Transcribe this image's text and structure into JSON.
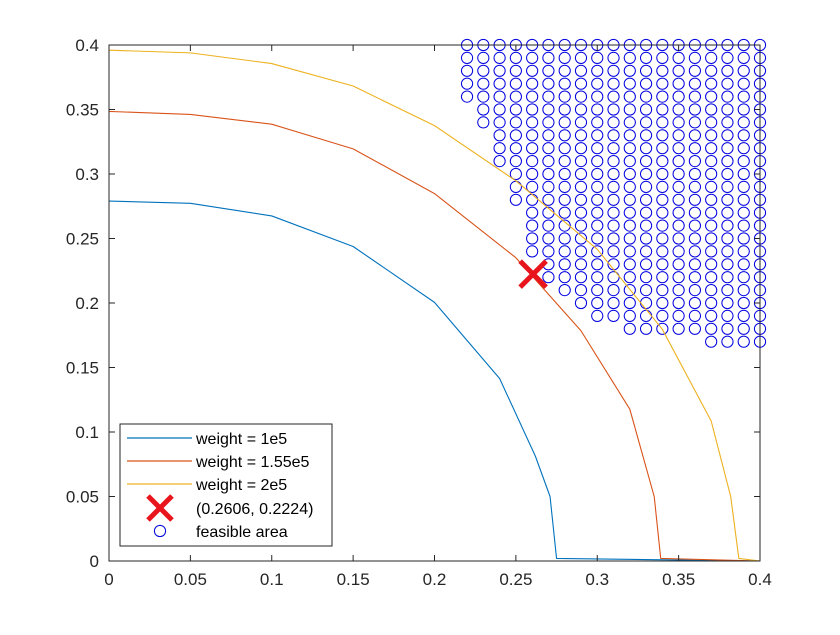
{
  "chart_data": {
    "type": "line",
    "title": "",
    "xlabel": "",
    "ylabel": "",
    "xlim": [
      0,
      0.4
    ],
    "ylim": [
      0,
      0.4
    ],
    "x_ticks": [
      0,
      0.05,
      0.1,
      0.15,
      0.2,
      0.25,
      0.3,
      0.35,
      0.4
    ],
    "x_tick_labels": [
      "0",
      "0.05",
      "0.1",
      "0.15",
      "0.2",
      "0.25",
      "0.3",
      "0.35",
      "0.4"
    ],
    "y_ticks": [
      0,
      0.05,
      0.1,
      0.15,
      0.2,
      0.25,
      0.3,
      0.35,
      0.4
    ],
    "y_tick_labels": [
      "0",
      "0.05",
      "0.1",
      "0.15",
      "0.2",
      "0.25",
      "0.3",
      "0.35",
      "0.4"
    ],
    "grid": false,
    "legend_position": "bottom-left",
    "series": [
      {
        "name": "weight = 1e5",
        "kind": "line",
        "color": "#0072BD",
        "points": [
          [
            0,
            0.279
          ],
          [
            0.05,
            0.2773
          ],
          [
            0.1,
            0.2675
          ],
          [
            0.15,
            0.2438
          ],
          [
            0.2,
            0.2005
          ],
          [
            0.24,
            0.1415
          ],
          [
            0.262,
            0.0812
          ],
          [
            0.271,
            0.05
          ],
          [
            0.275,
            0.002
          ],
          [
            0.4,
            0
          ]
        ]
      },
      {
        "name": "weight = 1.55e5",
        "kind": "line",
        "color": "#D95319",
        "points": [
          [
            0,
            0.3485
          ],
          [
            0.05,
            0.3462
          ],
          [
            0.1,
            0.3386
          ],
          [
            0.15,
            0.3195
          ],
          [
            0.2,
            0.2848
          ],
          [
            0.25,
            0.2351
          ],
          [
            0.29,
            0.1785
          ],
          [
            0.32,
            0.1177
          ],
          [
            0.335,
            0.05
          ],
          [
            0.339,
            0.002
          ],
          [
            0.4,
            0
          ]
        ]
      },
      {
        "name": "weight = 2e5",
        "kind": "line",
        "color": "#EDB120",
        "points": [
          [
            0,
            0.396
          ],
          [
            0.05,
            0.3939
          ],
          [
            0.1,
            0.3856
          ],
          [
            0.15,
            0.3682
          ],
          [
            0.2,
            0.3375
          ],
          [
            0.25,
            0.2947
          ],
          [
            0.3,
            0.2416
          ],
          [
            0.34,
            0.1796
          ],
          [
            0.37,
            0.1085
          ],
          [
            0.382,
            0.05
          ],
          [
            0.387,
            0.002
          ],
          [
            0.4,
            0
          ]
        ]
      },
      {
        "name": "(0.2606, 0.2224)",
        "kind": "marker",
        "marker": "x",
        "color": "#E8151C",
        "x": 0.2606,
        "y": 0.2224
      },
      {
        "name": "feasible area",
        "kind": "scatter",
        "marker": "o",
        "color": "#0000E0",
        "grid_step": 0.01,
        "x_range": [
          0.22,
          0.4
        ],
        "y_top": 0.4,
        "lower_bound_by_x": [
          0.36,
          0.34,
          0.31,
          0.28,
          0.24,
          0.22,
          0.21,
          0.2,
          0.19,
          0.19,
          0.18,
          0.18,
          0.18,
          0.18,
          0.18,
          0.17,
          0.17,
          0.17,
          0.17
        ]
      }
    ],
    "legend": [
      "weight = 1e5",
      "weight = 1.55e5",
      "weight = 2e5",
      "(0.2606, 0.2224)",
      "feasible area"
    ]
  }
}
